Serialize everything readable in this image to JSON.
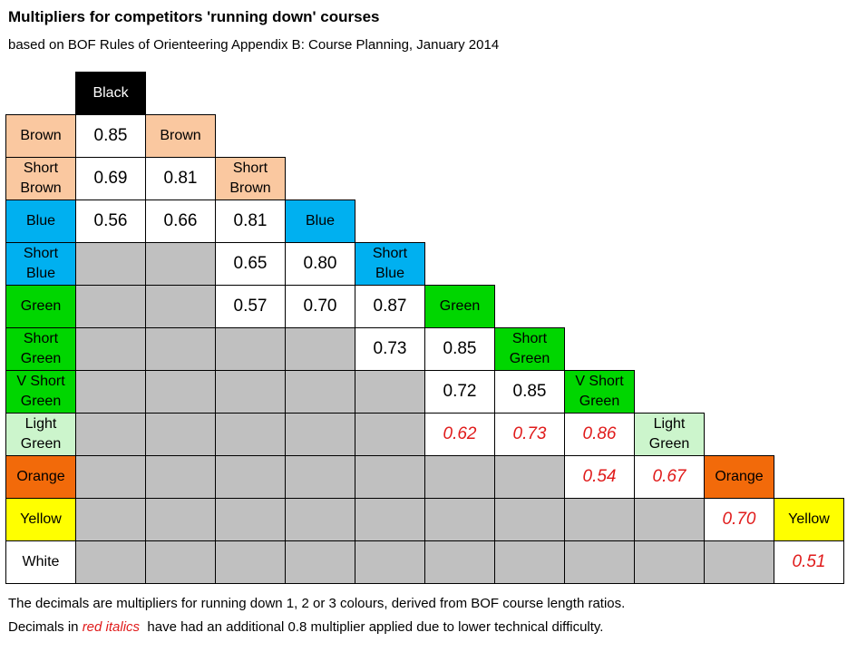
{
  "title": "Multipliers for competitors 'running down' courses",
  "subtitle": "based on BOF Rules of Orienteering Appendix B: Course Planning, January 2014",
  "courses": [
    {
      "label": "Black",
      "color": "#000000",
      "text_color": "#ffffff"
    },
    {
      "label": "Brown",
      "color": "#fac8a0",
      "text_color": "#000000"
    },
    {
      "label": "Short\nBrown",
      "color": "#fac8a0",
      "text_color": "#000000"
    },
    {
      "label": "Blue",
      "color": "#00b0f0",
      "text_color": "#000000"
    },
    {
      "label": "Short\nBlue",
      "color": "#00b0f0",
      "text_color": "#000000"
    },
    {
      "label": "Green",
      "color": "#00d600",
      "text_color": "#000000"
    },
    {
      "label": "Short\nGreen",
      "color": "#00d600",
      "text_color": "#000000"
    },
    {
      "label": "V Short\nGreen",
      "color": "#00d600",
      "text_color": "#000000"
    },
    {
      "label": "Light\nGreen",
      "color": "#ccf5cc",
      "text_color": "#000000"
    },
    {
      "label": "Orange",
      "color": "#f26a0a",
      "text_color": "#000000"
    },
    {
      "label": "Yellow",
      "color": "#ffff00",
      "text_color": "#000000"
    },
    {
      "label": "White",
      "color": "#ffffff",
      "text_color": "#000000"
    }
  ],
  "matrix_rows": [
    [
      "0.85"
    ],
    [
      "0.69",
      "0.81"
    ],
    [
      "0.56",
      "0.66",
      "0.81"
    ],
    [
      null,
      null,
      "0.65",
      "0.80"
    ],
    [
      null,
      null,
      "0.57",
      "0.70",
      "0.87"
    ],
    [
      null,
      null,
      null,
      null,
      "0.73",
      "0.85"
    ],
    [
      null,
      null,
      null,
      null,
      null,
      "0.72",
      "0.85"
    ],
    [
      null,
      null,
      null,
      null,
      null,
      "0.62",
      "0.73",
      "0.86"
    ],
    [
      null,
      null,
      null,
      null,
      null,
      null,
      null,
      "0.54",
      "0.67"
    ],
    [
      null,
      null,
      null,
      null,
      null,
      null,
      null,
      null,
      null,
      "0.70"
    ],
    [
      null,
      null,
      null,
      null,
      null,
      null,
      null,
      null,
      null,
      null,
      "0.51"
    ]
  ],
  "red_italic_values": [
    {
      "row": 7,
      "col": 5
    },
    {
      "row": 7,
      "col": 6
    },
    {
      "row": 7,
      "col": 7
    },
    {
      "row": 8,
      "col": 7
    },
    {
      "row": 8,
      "col": 8
    },
    {
      "row": 9,
      "col": 9
    },
    {
      "row": 10,
      "col": 10
    }
  ],
  "footer": {
    "line1": "The decimals are multipliers for running down 1, 2 or 3 colours, derived from BOF course length ratios.",
    "line2_before": "Decimals in ",
    "line2_red": "red italics",
    "line2_after": "  have had an additional 0.8 multiplier applied due to lower technical difficulty."
  },
  "colors": {
    "gray_cell": "#c0c0c0",
    "red_italic_text": "#e01b1b"
  }
}
